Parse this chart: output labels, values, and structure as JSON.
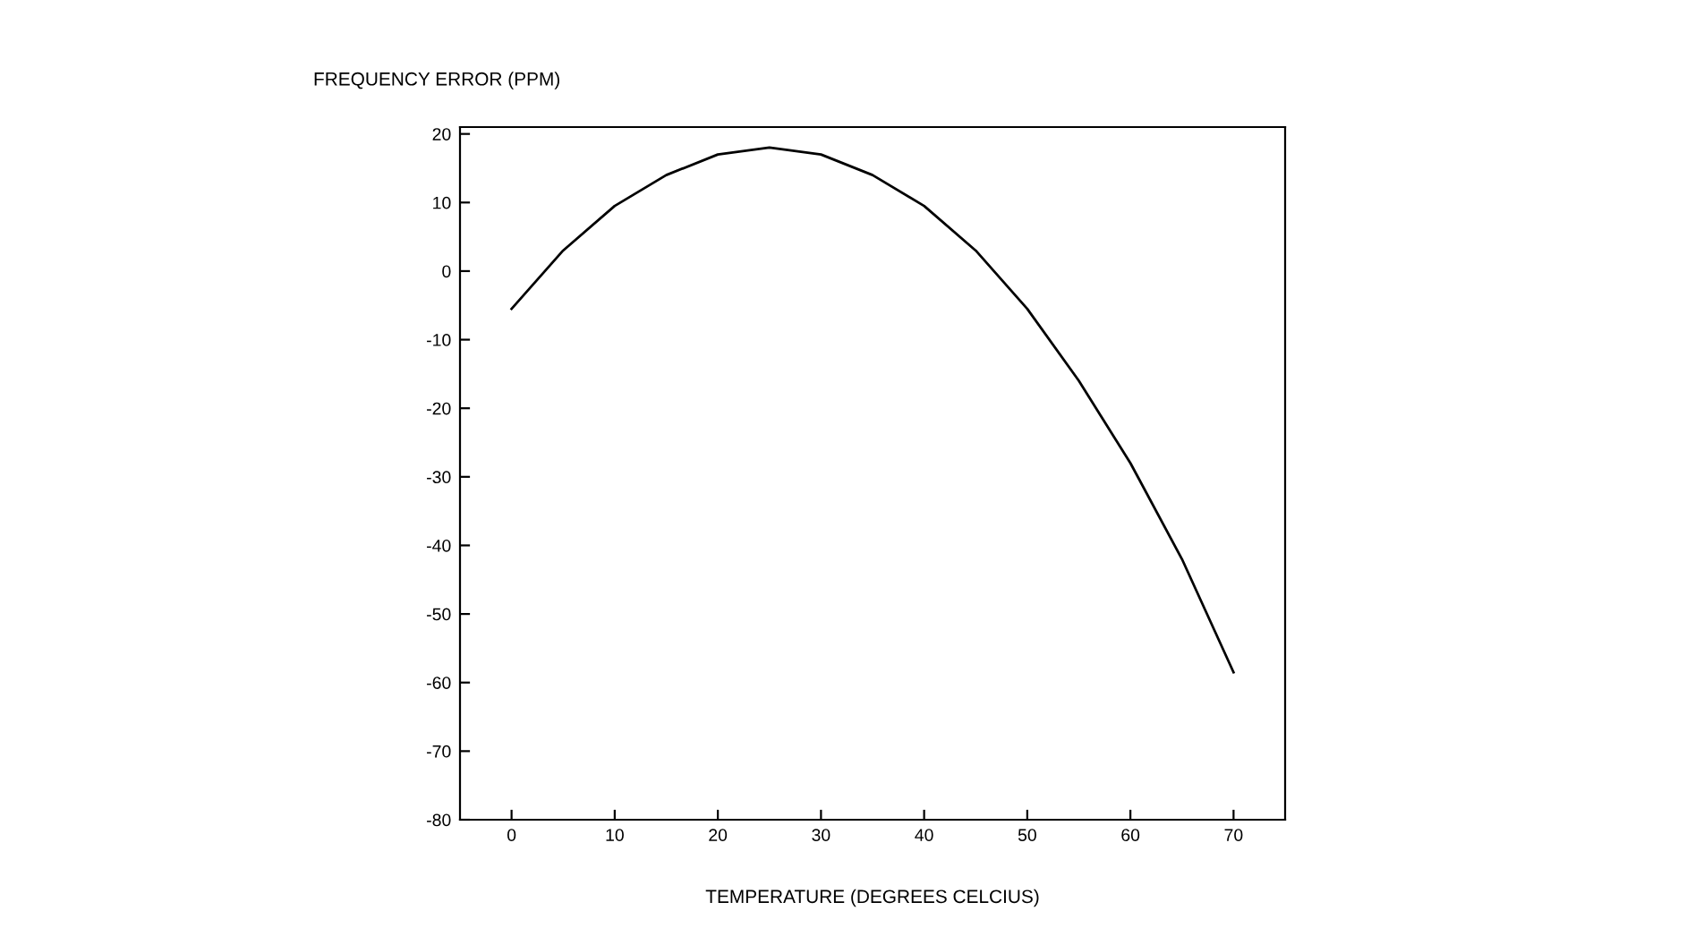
{
  "chart_data": {
    "type": "line",
    "xlabel": "TEMPERATURE (DEGREES CELCIUS)",
    "ylabel": "FREQUENCY ERROR (PPM)",
    "x": [
      0,
      5,
      10,
      15,
      20,
      25,
      30,
      35,
      40,
      45,
      50,
      55,
      60,
      65,
      70
    ],
    "series": [
      {
        "color": "#000000",
        "values": [
          -5.5,
          3,
          9.5,
          14,
          17,
          18,
          17,
          14,
          9.5,
          3,
          -5.5,
          -16,
          -28,
          -42,
          -58.5
        ]
      }
    ],
    "xlim": [
      -5,
      75
    ],
    "xticks": [
      0,
      10,
      20,
      30,
      40,
      50,
      60,
      70
    ],
    "ylim": [
      -80,
      21
    ],
    "yticks": [
      20,
      10,
      0,
      -10,
      -20,
      -30,
      -40,
      -50,
      -60,
      -70,
      -80
    ],
    "grid": false,
    "legend": false,
    "marker": "none",
    "line_style": "solid"
  }
}
